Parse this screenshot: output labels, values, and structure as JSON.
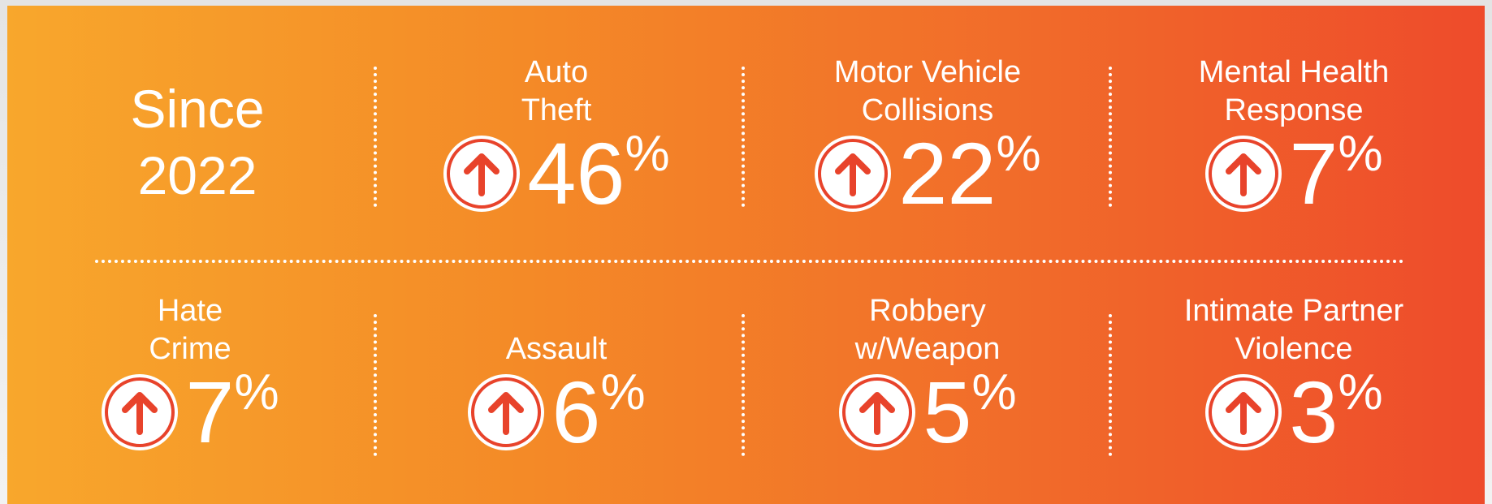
{
  "header": {
    "lines": [
      "Since",
      "2022"
    ]
  },
  "items": [
    {
      "label": [
        "Auto",
        "Theft"
      ],
      "value": 46,
      "unit": "%"
    },
    {
      "label": [
        "Motor Vehicle",
        "Collisions"
      ],
      "value": 22,
      "unit": "%"
    },
    {
      "label": [
        "Mental Health",
        "Response"
      ],
      "value": 7,
      "unit": "%"
    },
    {
      "label": [
        "Hate",
        "Crime"
      ],
      "value": 7,
      "unit": "%"
    },
    {
      "label": [
        "Assault"
      ],
      "value": 6,
      "unit": "%"
    },
    {
      "label": [
        "Robbery",
        "w/Weapon"
      ],
      "value": 5,
      "unit": "%"
    },
    {
      "label": [
        "Intimate Partner",
        "Violence"
      ],
      "value": 3,
      "unit": "%"
    }
  ]
}
